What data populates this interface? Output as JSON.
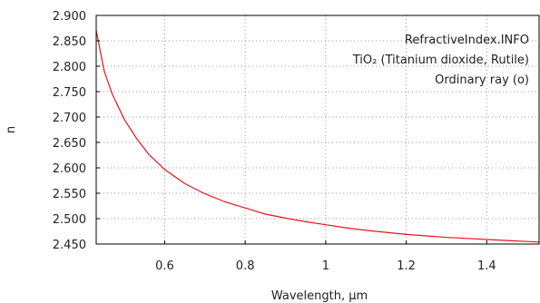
{
  "chart_data": {
    "type": "line",
    "title": "",
    "xlabel": "Wavelength, µm",
    "ylabel": "n",
    "xlim": [
      0.43,
      1.53
    ],
    "ylim": [
      2.45,
      2.9
    ],
    "grid": true,
    "x_ticks": [
      0.6,
      0.8,
      1,
      1.2,
      1.4
    ],
    "x_tick_labels": [
      "0.6",
      "0.8",
      "1",
      "1.2",
      "1.4"
    ],
    "y_ticks": [
      2.45,
      2.5,
      2.55,
      2.6,
      2.65,
      2.7,
      2.75,
      2.8,
      2.85,
      2.9
    ],
    "y_tick_labels": [
      "2.450",
      "2.500",
      "2.550",
      "2.600",
      "2.650",
      "2.700",
      "2.750",
      "2.800",
      "2.850",
      "2.900"
    ],
    "annotations": [
      "RefractiveIndex.INFO",
      "TiO₂ (Titanium dioxide, Rutile)",
      "Ordinary ray (o)"
    ],
    "series": [
      {
        "color": "#e8141e",
        "x": [
          0.43,
          0.45,
          0.47,
          0.5,
          0.53,
          0.56,
          0.6,
          0.65,
          0.7,
          0.75,
          0.8,
          0.85,
          0.9,
          0.95,
          1.0,
          1.05,
          1.1,
          1.15,
          1.2,
          1.25,
          1.3,
          1.35,
          1.4,
          1.45,
          1.5,
          1.53
        ],
        "y": [
          2.87,
          2.79,
          2.745,
          2.695,
          2.658,
          2.627,
          2.597,
          2.569,
          2.549,
          2.533,
          2.521,
          2.509,
          2.501,
          2.494,
          2.488,
          2.482,
          2.477,
          2.473,
          2.469,
          2.466,
          2.463,
          2.461,
          2.459,
          2.457,
          2.455,
          2.454
        ]
      }
    ]
  }
}
